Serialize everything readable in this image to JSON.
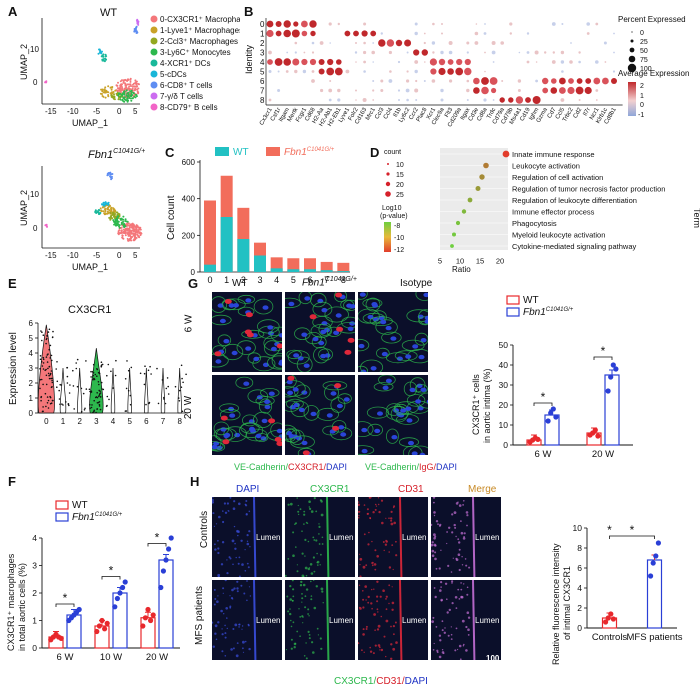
{
  "panels": {
    "A": {
      "label": "A",
      "umap_wt_title": "WT",
      "umap_mut_title": "Fbn1",
      "umap_mut_sup": "C1041G/+",
      "xlabel": "UMAP_1",
      "ylabel": "UMAP_2",
      "xticks": [
        "-15",
        "-10",
        "-5",
        "0",
        "5"
      ],
      "yticks_wt": [
        "0",
        "10"
      ],
      "yticks_mut": [
        "0",
        "10"
      ],
      "legend": [
        {
          "text": "0-CX3CR1⁺ Macrophages",
          "color": "#f4777a"
        },
        {
          "text": "1-Lyve1⁺ Macrophages",
          "color": "#c9a227"
        },
        {
          "text": "2-Ccl3⁺ Macrophages",
          "color": "#93a820"
        },
        {
          "text": "3-Ly6C⁺ Monocytes",
          "color": "#2db84d"
        },
        {
          "text": "4-XCR1⁺ DCs",
          "color": "#19b89a"
        },
        {
          "text": "5-cDCs",
          "color": "#18b6d8"
        },
        {
          "text": "6-CD8⁺ T cells",
          "color": "#5e8df2"
        },
        {
          "text": "7-γ/δ T cells",
          "color": "#cc6cf0"
        },
        {
          "text": "8-CD79⁺ B cells",
          "color": "#f265c7"
        }
      ]
    },
    "B": {
      "label": "B",
      "ylabel": "Identity",
      "rows": [
        "0",
        "1",
        "2",
        "3",
        "4",
        "5",
        "6",
        "7",
        "8"
      ],
      "genes": [
        "Cx3cr1",
        "Csf1r",
        "Itgam",
        "Mertk",
        "Fcgr1",
        "Cd68",
        "H2-Aa",
        "H2-Ab1",
        "H2-Eb1",
        "Lyve1",
        "Folr2",
        "Cd163",
        "Mrc1",
        "Ccl3",
        "Ccl4",
        "Il1b",
        "Ly6c2",
        "Ccr2",
        "Plac8",
        "Xcr1",
        "Clec9a",
        "Flt3",
        "Cd209a",
        "Itgax",
        "Cd3e",
        "Cd8a",
        "Trdc",
        "Cd79a",
        "Cd79b",
        "Ms4a1",
        "Cd19",
        "Ighm",
        "Gzma",
        "Cd7",
        "Ccl5",
        "Trbc2",
        "Cd2",
        "Il7r",
        "Ncr1",
        "Klrb1c",
        "Cd8b1"
      ],
      "size_legend_title": "Percent Expressed",
      "size_legend": [
        "0",
        "25",
        "50",
        "75",
        "100"
      ],
      "color_legend_title": "Average Expression",
      "color_legend": [
        "2",
        "1",
        "0",
        "-1"
      ]
    },
    "C": {
      "label": "C",
      "legend_wt": "WT",
      "legend_mut": "Fbn1",
      "legend_mut_sup": "C1041G/+",
      "ylabel": "Cell count",
      "yticks": [
        "0",
        "200",
        "400",
        "600"
      ],
      "color_wt": "#22c1c3",
      "color_mut": "#f26d5b"
    },
    "D": {
      "label": "D",
      "xlabel": "Ratio",
      "ylabel": "Term",
      "xticks": [
        "5",
        "10",
        "15",
        "20"
      ],
      "count_title": "count",
      "count_legend": [
        "10",
        "15",
        "20",
        "25"
      ],
      "p_title1": "Log10",
      "p_title2": "(p-value)",
      "p_legend": [
        "-8",
        "-10",
        "-12"
      ],
      "terms": [
        "Innate immune response",
        "Leukocyte activation",
        "Regulation of cell activation",
        "Regulation of tumor necrosis factor production",
        "Regulation of leukocyte differentiation",
        "Immune effector process",
        "Phagocytosis",
        "Myeloid leukocyte activation",
        "Cytokine-mediated signaling pathway"
      ]
    },
    "E": {
      "label": "E",
      "title": "CX3CR1",
      "ylabel": "Expression level",
      "yticks": [
        "0",
        "1",
        "2",
        "3",
        "4",
        "5",
        "6"
      ],
      "xticks": [
        "0",
        "1",
        "2",
        "3",
        "4",
        "5",
        "6",
        "7",
        "8"
      ]
    },
    "F": {
      "label": "F",
      "ylabel1": "CX3CR1⁺ macrophages",
      "ylabel2": "in total aortic cells (%)",
      "yticks": [
        "0",
        "1",
        "2",
        "3",
        "4"
      ],
      "groups": [
        "6 W",
        "10 W",
        "20 W"
      ],
      "legend_wt": "WT",
      "legend_mut": "Fbn1",
      "legend_mut_sup": "C1041G/+",
      "star": "*"
    },
    "G": {
      "label": "G",
      "col_wt": "WT",
      "col_mut": "Fbn1",
      "col_mut_sup": "C1041G/+",
      "col_iso": "Isotype",
      "row_6w": "6 W",
      "row_20w": "20 W",
      "scale": "20 μm",
      "cap_a_green": "VE-Cadherin/",
      "cap_a_red": "CX3CR1/",
      "cap_a_blue": "DAPI",
      "cap_b_green": "VE-Cadherin/",
      "cap_b_red": "IgG/",
      "cap_b_blue": "DAPI",
      "bar_ylabel1": "CX3CR1⁺ cells",
      "bar_ylabel2": "in aortic intima (%)",
      "bar_yticks": [
        "0",
        "10",
        "20",
        "30",
        "40",
        "50"
      ],
      "bar_groups": [
        "6 W",
        "20 W"
      ],
      "legend_wt": "WT",
      "legend_mut": "Fbn1",
      "legend_mut_sup": "C1041G/+",
      "star": "*"
    },
    "H": {
      "label": "H",
      "col_dapi": "DAPI",
      "col_cx3": "CX3CR1",
      "col_cd31": "CD31",
      "col_merge": "Merge",
      "row_controls": "Controls",
      "row_mfs": "MFS patients",
      "lumen": "Lumen",
      "scale": "100 μm",
      "cap_green": "CX3CR1/",
      "cap_red": "CD31/",
      "cap_blue": "DAPI",
      "bar_ylabel1": "Relative fluorescence intensity",
      "bar_ylabel2": "of intimal CX3CR1",
      "bar_yticks": [
        "0",
        "2",
        "4",
        "6",
        "8",
        "10"
      ],
      "bar_groups": [
        "Controls",
        "MFS patients"
      ],
      "star": "*"
    }
  },
  "chart_data": [
    {
      "type": "bar",
      "panel": "C",
      "categories": [
        "0",
        "1",
        "2",
        "3",
        "4",
        "5",
        "6",
        "7",
        "8"
      ],
      "series": [
        {
          "name": "WT",
          "values": [
            40,
            300,
            180,
            90,
            20,
            15,
            15,
            10,
            5
          ]
        },
        {
          "name": "Fbn1 C1041G/+",
          "values": [
            390,
            525,
            350,
            160,
            80,
            75,
            75,
            55,
            50
          ]
        }
      ],
      "ylabel": "Cell count",
      "ylim": [
        0,
        600
      ]
    },
    {
      "type": "scatter",
      "panel": "D",
      "xlabel": "Ratio",
      "ylabel": "Term",
      "xlim": [
        5,
        22
      ],
      "points": [
        {
          "term": "Innate immune response",
          "ratio": 21.5,
          "count": 26,
          "logp": -12.5
        },
        {
          "term": "Leukocyte activation",
          "ratio": 16.5,
          "count": 19,
          "logp": -10.5
        },
        {
          "term": "Regulation of cell activation",
          "ratio": 15.5,
          "count": 18,
          "logp": -10
        },
        {
          "term": "Regulation of tumor necrosis factor production",
          "ratio": 14.5,
          "count": 16,
          "logp": -9.5
        },
        {
          "term": "Regulation of leukocyte differentiation",
          "ratio": 12.5,
          "count": 14,
          "logp": -9
        },
        {
          "term": "Immune effector process",
          "ratio": 11,
          "count": 12,
          "logp": -8.5
        },
        {
          "term": "Phagocytosis",
          "ratio": 9.5,
          "count": 11,
          "logp": -8.2
        },
        {
          "term": "Myeloid leukocyte activation",
          "ratio": 8.5,
          "count": 10,
          "logp": -8
        },
        {
          "term": "Cytokine-mediated signaling pathway",
          "ratio": 8,
          "count": 9,
          "logp": -7.8
        }
      ]
    },
    {
      "type": "bar",
      "panel": "F",
      "categories": [
        "6 W",
        "10 W",
        "20 W"
      ],
      "series": [
        {
          "name": "WT",
          "values": [
            0.4,
            0.8,
            1.1
          ],
          "points": [
            [
              0.3,
              0.4,
              0.5,
              0.4,
              0.35
            ],
            [
              0.6,
              0.8,
              1.0,
              0.7,
              0.9
            ],
            [
              0.8,
              1.1,
              1.4,
              1.0,
              1.2
            ]
          ]
        },
        {
          "name": "Fbn1 C1041G/+",
          "values": [
            1.2,
            2.0,
            3.2
          ],
          "points": [
            [
              1.0,
              1.1,
              1.2,
              1.3,
              1.4
            ],
            [
              1.5,
              1.8,
              2.0,
              2.2,
              2.4
            ],
            [
              2.2,
              2.8,
              3.2,
              3.6,
              4.0
            ]
          ]
        }
      ],
      "ylim": [
        0,
        4
      ]
    },
    {
      "type": "bar",
      "panel": "G",
      "categories": [
        "6 W",
        "20 W"
      ],
      "series": [
        {
          "name": "WT",
          "values": [
            2.5,
            6
          ],
          "points": [
            [
              1.5,
              2.5,
              3.5,
              2.8
            ],
            [
              5,
              6,
              7.5,
              4.5
            ]
          ]
        },
        {
          "name": "Fbn1 C1041G/+",
          "values": [
            15,
            35
          ],
          "points": [
            [
              12,
              16,
              18,
              14
            ],
            [
              27,
              34,
              40,
              38
            ]
          ]
        }
      ],
      "ylim": [
        0,
        50
      ]
    },
    {
      "type": "bar",
      "panel": "H",
      "categories": [
        "Controls",
        "MFS patients"
      ],
      "series": [
        {
          "name": "value",
          "values": [
            1,
            6.8
          ],
          "points": [
            [
              0.6,
              1.0,
              1.4,
              0.9
            ],
            [
              5.2,
              6.5,
              7.2,
              8.5
            ]
          ]
        }
      ],
      "ylim": [
        0,
        10
      ]
    }
  ]
}
